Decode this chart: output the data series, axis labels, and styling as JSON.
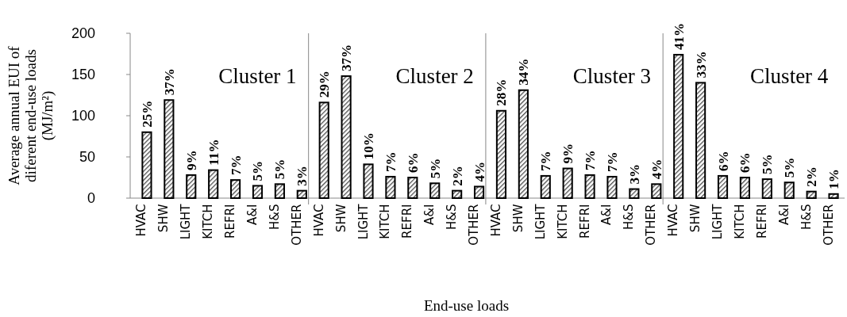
{
  "chart_data": {
    "type": "bar",
    "xlabel": "End-use loads",
    "ylabel": "Average annual EUI of\ndiferent end-use loads\n(MJ/m²)",
    "categories": [
      "HVAC",
      "SHW",
      "LIGHT",
      "KITCH",
      "REFRI",
      "A&I",
      "H&S",
      "OTHER",
      "HVAC",
      "SHW",
      "LIGHT",
      "KITCH",
      "REFRI",
      "A&I",
      "H&S",
      "OTHER",
      "HVAC",
      "SHW",
      "LIGHT",
      "KITCH",
      "REFRI",
      "A&I",
      "H&S",
      "OTHER",
      "HVAC",
      "SHW",
      "LIGHT",
      "KITCH",
      "REFRI",
      "A&I",
      "H&S",
      "OTHER"
    ],
    "values": [
      80,
      119,
      28,
      34,
      22,
      15,
      17,
      9,
      116,
      148,
      41,
      26,
      25,
      18,
      9,
      14,
      106,
      131,
      27,
      36,
      28,
      26,
      11,
      17,
      174,
      140,
      27,
      25,
      23,
      19,
      8,
      5
    ],
    "color": "#000000",
    "ylim": [
      0,
      200
    ],
    "yticks": [
      0,
      50,
      100,
      150,
      200
    ],
    "grid": false,
    "annotations": [
      "Cluster 1",
      "Cluster 2",
      "Cluster 3",
      "Cluster 4",
      "25%",
      "37%",
      "9%",
      "11%",
      "7%",
      "5%",
      "5%",
      "3%",
      "29%",
      "37%",
      "10%",
      "7%",
      "6%",
      "5%",
      "2%",
      "4%",
      "28%",
      "34%",
      "7%",
      "9%",
      "7%",
      "7%",
      "3%",
      "4%",
      "41%",
      "33%",
      "6%",
      "6%",
      "5%",
      "5%",
      "2%",
      "1%"
    ]
  }
}
